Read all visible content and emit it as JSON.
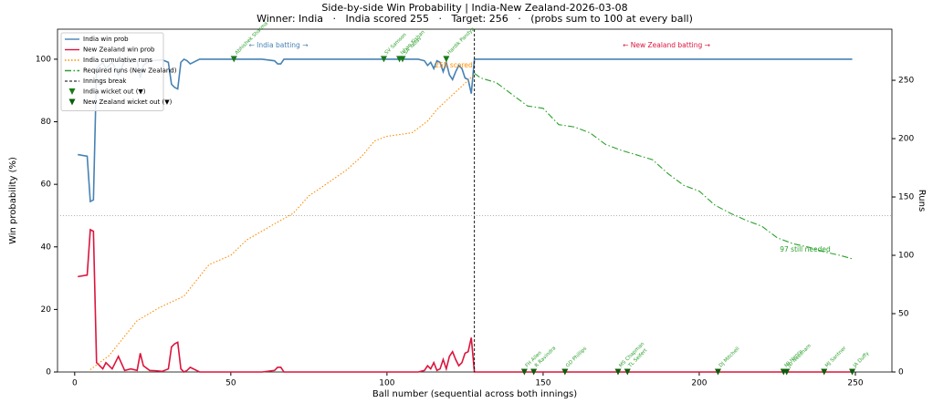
{
  "chart_data": {
    "type": "line",
    "title": "Side-by-side Win Probability  |  India-New Zealand-2026-03-08",
    "subtitle": "Winner: India   ·   India scored 255   ·   Target: 256   ·   (probs sum to 100 at every ball)",
    "x_label": "Ball number (sequential across both innings)",
    "y_label": "Win probability (%)",
    "y2_label": "Runs",
    "xlim": [
      -5.5,
      261.7
    ],
    "ylim": [
      0,
      109.6
    ],
    "y2lim": [
      0,
      293.8
    ],
    "xticks": [
      0,
      50,
      100,
      150,
      200,
      250
    ],
    "yticks": [
      0,
      20,
      40,
      60,
      80,
      100
    ],
    "y2ticks": [
      0,
      50,
      100,
      150,
      200,
      250
    ],
    "hline": 50,
    "legend": "upper left",
    "series": [
      {
        "name": "India win prob",
        "color": "#4682b4",
        "style": "solid",
        "axis": "y",
        "x": [
          1,
          4,
          5,
          6,
          7,
          9,
          10,
          12,
          14,
          16,
          18,
          20,
          21,
          22,
          24,
          26,
          28,
          30,
          31,
          32,
          33,
          34,
          35,
          36,
          37,
          40,
          45,
          50,
          55,
          60,
          64,
          65,
          66,
          67,
          70,
          80,
          90,
          100,
          105,
          108,
          110,
          112,
          113,
          114,
          115,
          116,
          117,
          118,
          119,
          120,
          121,
          122,
          123,
          124,
          125,
          126,
          127,
          128,
          130,
          150,
          200,
          249
        ],
        "values": [
          69.5,
          69,
          54.5,
          55,
          97,
          99,
          97,
          99,
          95,
          99.5,
          99,
          99.5,
          94,
          98,
          99.5,
          99.6,
          99.8,
          99,
          92,
          91,
          90.5,
          99,
          100,
          99.5,
          98.5,
          100,
          100,
          100,
          100,
          100,
          99.5,
          98.5,
          98.5,
          100,
          100,
          100,
          100,
          100,
          100,
          100,
          100,
          99.5,
          98,
          99,
          97,
          99.5,
          99,
          96,
          99,
          95,
          93.5,
          96,
          98,
          97,
          94,
          93.5,
          89,
          100,
          100,
          100,
          100,
          100
        ]
      },
      {
        "name": "New Zealand win prob",
        "color": "#dc143c",
        "style": "solid",
        "axis": "y",
        "x": [
          1,
          4,
          5,
          6,
          7,
          9,
          10,
          12,
          14,
          16,
          18,
          20,
          21,
          22,
          24,
          26,
          28,
          30,
          31,
          32,
          33,
          34,
          35,
          36,
          37,
          40,
          45,
          50,
          55,
          60,
          64,
          65,
          66,
          67,
          70,
          80,
          90,
          100,
          105,
          108,
          110,
          112,
          113,
          114,
          115,
          116,
          117,
          118,
          119,
          120,
          121,
          122,
          123,
          124,
          125,
          126,
          127,
          128,
          130,
          150,
          200,
          249
        ],
        "values": [
          30.5,
          31,
          45.5,
          45,
          3,
          1,
          3,
          1,
          5,
          0.5,
          1,
          0.5,
          6,
          2,
          0.5,
          0.4,
          0.2,
          1,
          8,
          9,
          9.5,
          1,
          0,
          0.5,
          1.5,
          0,
          0,
          0,
          0,
          0,
          0.5,
          1.5,
          1.5,
          0,
          0,
          0,
          0,
          0,
          0,
          0,
          0,
          0.5,
          2,
          1,
          3,
          0.5,
          1,
          4,
          1,
          5,
          6.5,
          4,
          2,
          3,
          6,
          6.5,
          11,
          0,
          0,
          0,
          0,
          0
        ]
      },
      {
        "name": "India cumulative runs",
        "color": "#ff8c00",
        "style": "dotted",
        "axis": "y2",
        "x": [
          5,
          11,
          20,
          27,
          35,
          43,
          50,
          55,
          64,
          70,
          75,
          80,
          87,
          92,
          96,
          100,
          108,
          113,
          116,
          122,
          128
        ],
        "values": [
          2,
          14,
          44,
          55,
          65,
          92,
          100,
          113,
          127,
          136,
          151,
          160,
          173,
          185,
          198,
          202,
          205,
          215,
          225,
          240,
          255
        ]
      },
      {
        "name": "Required runs (New Zealand)",
        "color": "#2ca02c",
        "style": "dashdot",
        "axis": "y2",
        "x": [
          128,
          130,
          135,
          140,
          145,
          150,
          155,
          160,
          165,
          170,
          175,
          180,
          185,
          190,
          195,
          200,
          205,
          210,
          215,
          220,
          225,
          230,
          235,
          240,
          245,
          249
        ],
        "values": [
          256,
          252,
          248,
          238,
          228,
          226,
          212,
          210,
          205,
          195,
          190,
          186,
          182,
          170,
          160,
          155,
          143,
          136,
          130,
          125,
          115,
          110,
          107,
          103,
          100,
          97
        ]
      }
    ],
    "innings_break": {
      "name": "Innings break",
      "x": 128,
      "color": "#000000"
    },
    "wickets": [
      {
        "name": "India wicket out (▼)",
        "color": "#1a7a1a",
        "x": [
          51,
          99,
          104,
          105,
          119
        ],
        "values": [
          100,
          100,
          100,
          100,
          100
        ],
        "labels": [
          "Abhishek Sharma",
          "SV Samson",
          "Ishan Kishan",
          "SA Yadav",
          "Hardik Pandya"
        ]
      },
      {
        "name": "New Zealand wicket out (▼)",
        "color": "#0b5d0b",
        "x": [
          144,
          147,
          157,
          174,
          177,
          206,
          227,
          228,
          240,
          249
        ],
        "values": [
          0,
          0,
          0,
          0,
          0,
          0,
          0,
          0,
          0,
          0
        ],
        "labels": [
          "FH Allen",
          "R Ravindra",
          "GD Phillips",
          "MS Chapman",
          "TL Seifert",
          "DJ Mitchell",
          "MJ Henry",
          "JD Neesham",
          "MJ Santner",
          "JA Duffy"
        ]
      }
    ],
    "annotations": [
      {
        "text": "← India batting →",
        "color": "#4682b4"
      },
      {
        "text": "← New Zealand batting →",
        "color": "#dc143c"
      },
      {
        "text": "255 scored",
        "color": "#ff8c00"
      },
      {
        "text": "97 still needed",
        "color": "#2ca02c"
      }
    ]
  }
}
